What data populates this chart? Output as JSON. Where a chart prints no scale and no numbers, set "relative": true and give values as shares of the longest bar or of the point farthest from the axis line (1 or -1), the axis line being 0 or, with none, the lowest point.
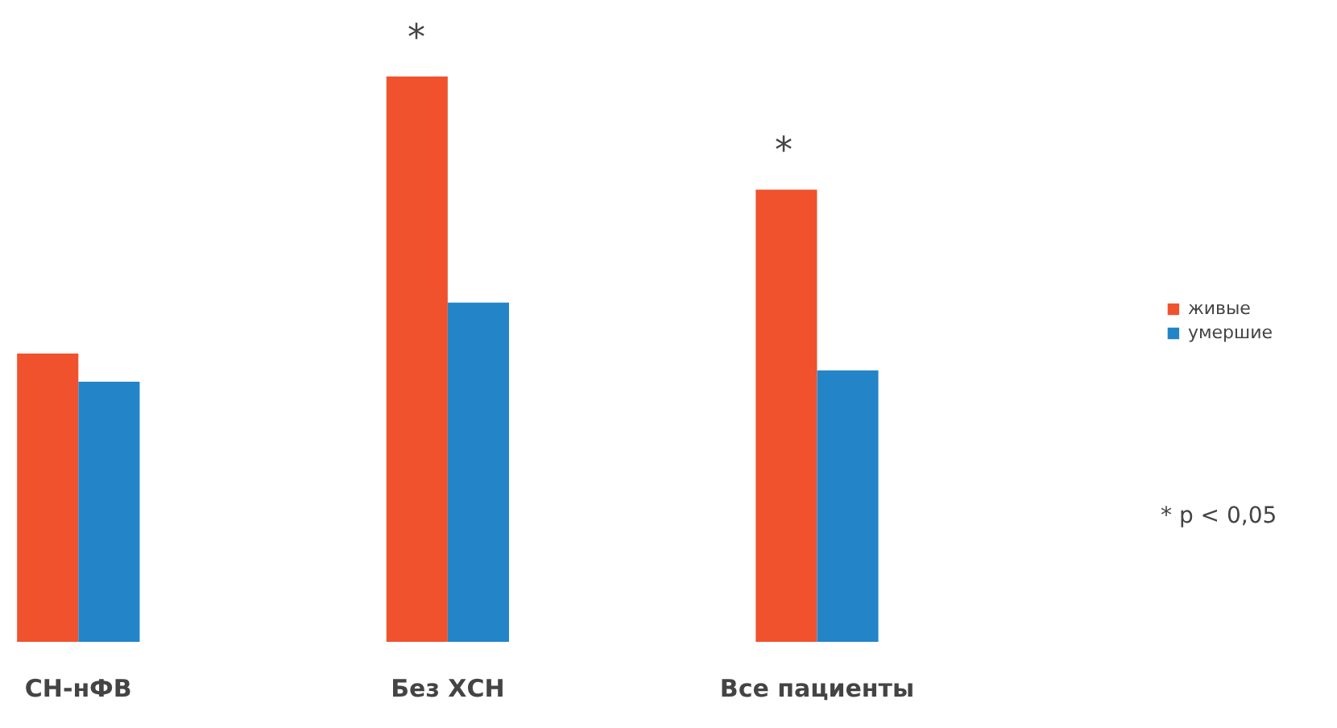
{
  "chart_data": {
    "type": "bar",
    "relative": true,
    "categories": [
      "СН-нФВ",
      "Без ХСН",
      "Все пациенты"
    ],
    "series": [
      {
        "name": "живые",
        "color": "#f0522e",
        "values": [
          0.51,
          1,
          0.8
        ]
      },
      {
        "name": "умершие",
        "color": "#2385c8",
        "values": [
          0.46,
          0.6,
          0.48
        ]
      }
    ],
    "legend": "right",
    "grid": false,
    "annotations": [
      "*",
      "*",
      "* p < 0,05"
    ]
  }
}
